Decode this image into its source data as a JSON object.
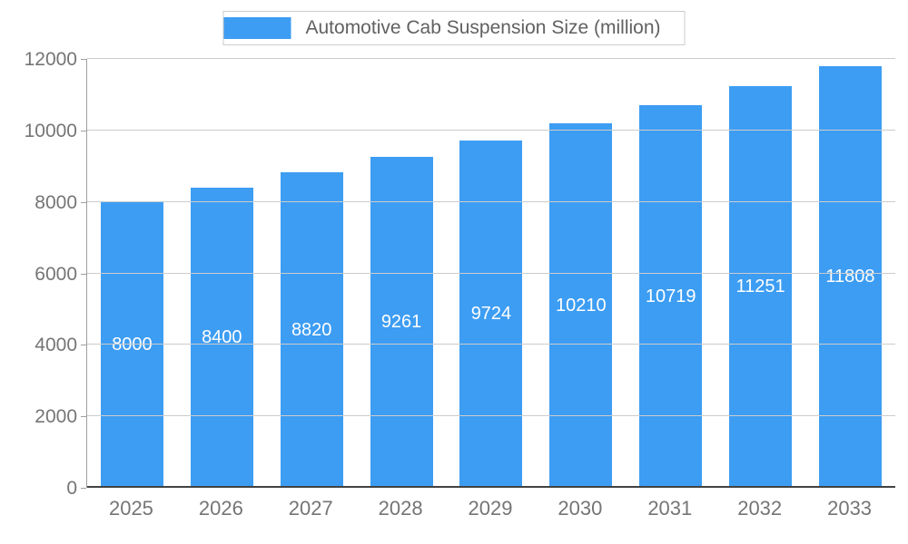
{
  "chart_data": {
    "type": "bar",
    "title": "Automotive Cab Suspension Size (million)",
    "categories": [
      "2025",
      "2026",
      "2027",
      "2028",
      "2029",
      "2030",
      "2031",
      "2032",
      "2033"
    ],
    "values": [
      8000,
      8400,
      8820,
      9261,
      9724,
      10210,
      10719,
      11251,
      11808
    ],
    "xlabel": "",
    "ylabel": "",
    "ylim": [
      0,
      12000
    ],
    "ytick_step": 2000,
    "yticks": [
      "0",
      "2000",
      "4000",
      "6000",
      "8000",
      "10000",
      "12000"
    ],
    "grid": true,
    "legend_position": "top",
    "colors": {
      "bar": "#3d9df3",
      "bar_value_text": "#ffffff",
      "axis_text": "#757575",
      "title_text": "#616161",
      "gridline": "#cccccc",
      "baseline": "#424242",
      "legend_border": "#cccccc"
    }
  }
}
